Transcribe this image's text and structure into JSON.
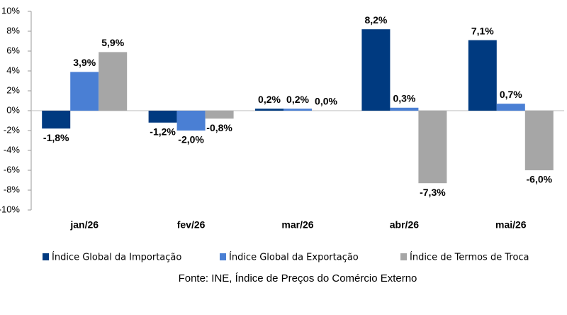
{
  "chart_data": {
    "type": "bar",
    "categories": [
      "jan/26",
      "fev/26",
      "mar/26",
      "abr/26",
      "mai/26"
    ],
    "series": [
      {
        "name": "Índice Global da Importação",
        "color": "#003a80",
        "values": [
          -1.8,
          -1.2,
          0.2,
          8.2,
          7.1
        ],
        "value_labels": [
          "-1,8%",
          "-1,2%",
          "0,2%",
          "8,2%",
          "7,1%"
        ]
      },
      {
        "name": "Índice Global da Exportação",
        "color": "#4a7fd4",
        "values": [
          3.9,
          -2.0,
          0.2,
          0.3,
          0.7
        ],
        "value_labels": [
          "3,9%",
          "-2,0%",
          "0,2%",
          "0,3%",
          "0,7%"
        ]
      },
      {
        "name": "Índice de Termos de Troca",
        "color": "#a6a6a6",
        "values": [
          5.9,
          -0.8,
          0.0,
          -7.3,
          -6.0
        ],
        "value_labels": [
          "5,9%",
          "-0,8%",
          "0,0%",
          "-7,3%",
          "-6,0%"
        ]
      }
    ],
    "ylim": [
      -10,
      10
    ],
    "yticks": [
      {
        "value": -10,
        "label": "-10%"
      },
      {
        "value": -8,
        "label": "-8%"
      },
      {
        "value": -6,
        "label": "-6%"
      },
      {
        "value": -4,
        "label": "-4%"
      },
      {
        "value": -2,
        "label": "-2%"
      },
      {
        "value": 0,
        "label": "0%"
      },
      {
        "value": 2,
        "label": "2%"
      },
      {
        "value": 4,
        "label": "4%"
      },
      {
        "value": 6,
        "label": "6%"
      },
      {
        "value": 8,
        "label": "8%"
      },
      {
        "value": 10,
        "label": "10%"
      }
    ],
    "source": "Fonte: INE, Índice de Preços do Comércio Externo"
  }
}
